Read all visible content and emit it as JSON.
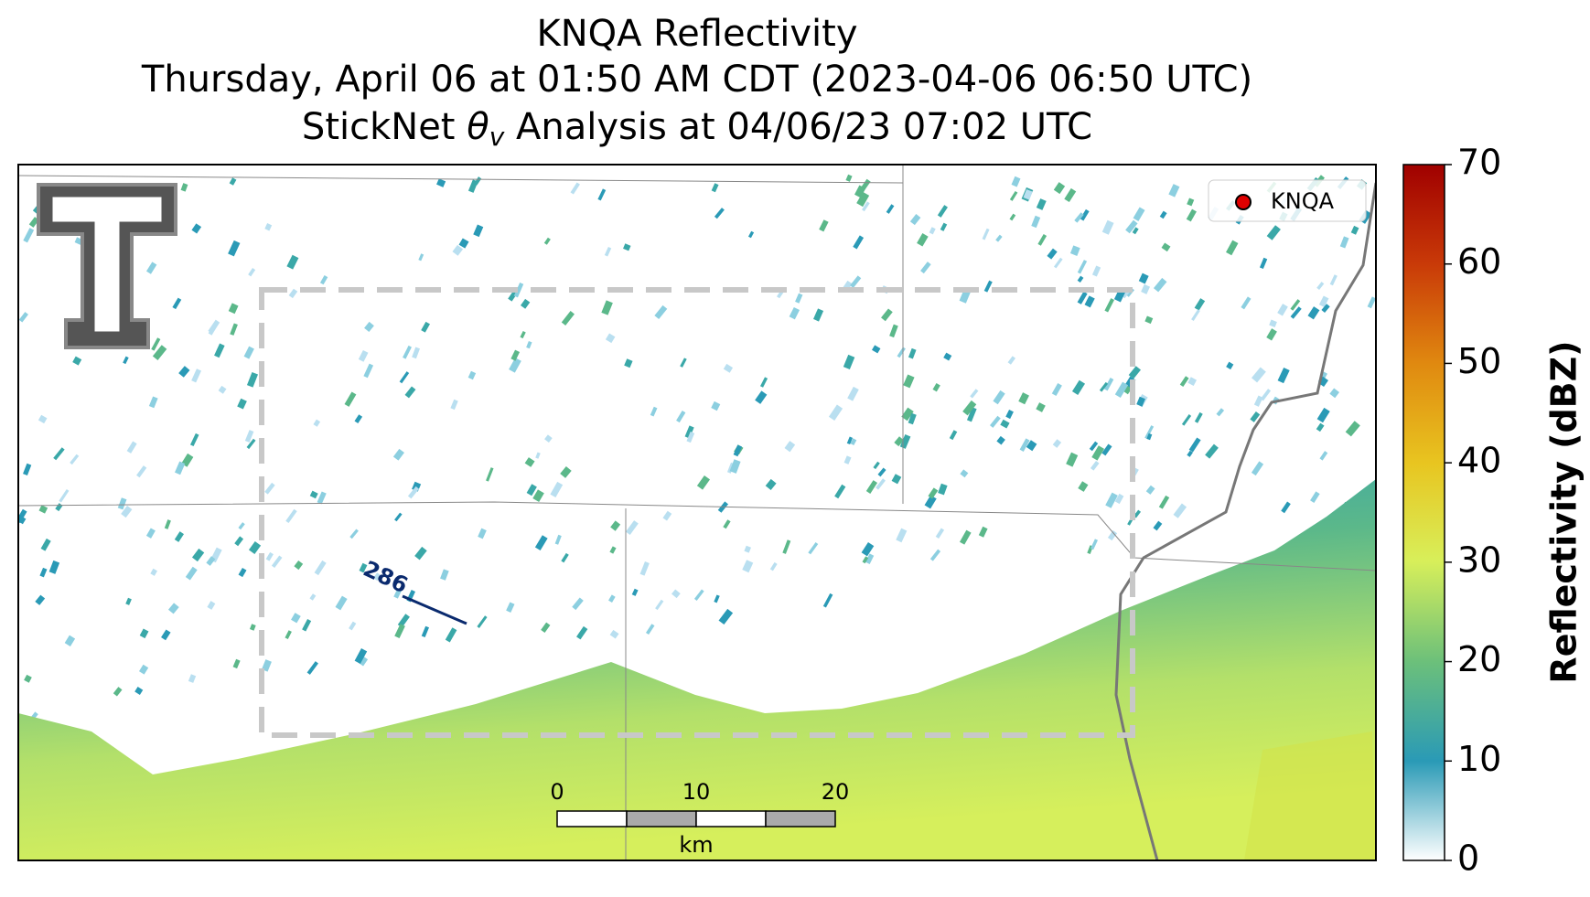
{
  "header": {
    "title_lines": [
      "KNQA Reflectivity",
      "Thursday, April 06 at 01:50 AM CDT (2023-04-06 06:50 UTC)"
    ],
    "analysis_line": {
      "prefix": "StickNet ",
      "symbol": "θ",
      "subscript": "v",
      "suffix": " Analysis at 04/06/23 07:02 UTC"
    }
  },
  "map": {
    "legend": "KNQA",
    "contour_label": "286",
    "scale_bar": {
      "labels": [
        "0",
        "10",
        "20"
      ],
      "unit": "km"
    }
  },
  "colorbar": {
    "label": "Reflectivity (dBZ)",
    "lim": [
      0,
      70
    ],
    "ticks": [
      0,
      10,
      20,
      30,
      40,
      50,
      60,
      70
    ]
  }
}
